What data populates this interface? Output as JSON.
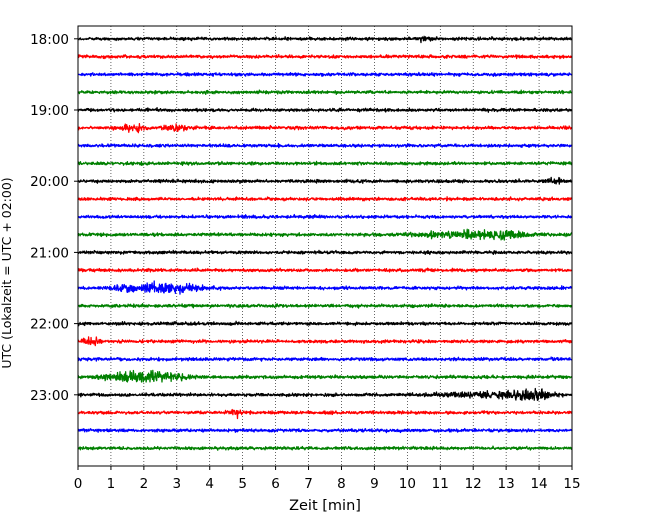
{
  "chart_data": {
    "type": "line",
    "xlabel": "Zeit  [min]",
    "ylabel": "UTC (Lokalzeit = UTC + 02:00)",
    "xlim": [
      0,
      15
    ],
    "xticks": [
      0,
      1,
      2,
      3,
      4,
      5,
      6,
      7,
      8,
      9,
      10,
      11,
      12,
      13,
      14,
      15
    ],
    "xtick_labels": [
      "0",
      "1",
      "2",
      "3",
      "4",
      "5",
      "6",
      "7",
      "8",
      "9",
      "10",
      "11",
      "12",
      "13",
      "14",
      "15"
    ],
    "yticks": [
      {
        "hour": 18.0,
        "label": "18:00"
      },
      {
        "hour": 19.0,
        "label": "19:00"
      },
      {
        "hour": 20.0,
        "label": "20:00"
      },
      {
        "hour": 21.0,
        "label": "21:00"
      },
      {
        "hour": 22.0,
        "label": "22:00"
      },
      {
        "hour": 23.0,
        "label": "23:00"
      }
    ],
    "ylim_hours": [
      17.82,
      24.0
    ],
    "grid": "vertical dotted",
    "trace_interval_min": 15,
    "color_cycle": [
      "#000000",
      "#ff0000",
      "#0000ff",
      "#008000"
    ],
    "traces": [
      {
        "start": "18:00",
        "color": "#000000",
        "events": [
          {
            "t": 10.5,
            "amp": 1.2,
            "w": 0.2
          }
        ]
      },
      {
        "start": "18:15",
        "color": "#ff0000",
        "events": []
      },
      {
        "start": "18:30",
        "color": "#0000ff",
        "events": []
      },
      {
        "start": "18:45",
        "color": "#008000",
        "events": []
      },
      {
        "start": "19:00",
        "color": "#000000",
        "events": []
      },
      {
        "start": "19:15",
        "color": "#ff0000",
        "events": [
          {
            "t": 1.6,
            "amp": 2.2,
            "w": 0.3
          },
          {
            "t": 3.0,
            "amp": 1.8,
            "w": 0.3
          }
        ]
      },
      {
        "start": "19:30",
        "color": "#0000ff",
        "events": []
      },
      {
        "start": "19:45",
        "color": "#008000",
        "events": []
      },
      {
        "start": "20:00",
        "color": "#000000",
        "events": [
          {
            "t": 14.5,
            "amp": 1.3,
            "w": 0.2
          }
        ]
      },
      {
        "start": "20:15",
        "color": "#ff0000",
        "events": []
      },
      {
        "start": "20:30",
        "color": "#0000ff",
        "events": []
      },
      {
        "start": "20:45",
        "color": "#008000",
        "events": [
          {
            "t": 11.8,
            "amp": 2.5,
            "w": 1.0
          },
          {
            "t": 13.0,
            "amp": 2.4,
            "w": 0.3
          }
        ]
      },
      {
        "start": "21:00",
        "color": "#000000",
        "events": []
      },
      {
        "start": "21:15",
        "color": "#ff0000",
        "events": []
      },
      {
        "start": "21:30",
        "color": "#0000ff",
        "events": [
          {
            "t": 1.6,
            "amp": 3.0,
            "w": 0.35
          },
          {
            "t": 2.4,
            "amp": 3.2,
            "w": 0.3
          },
          {
            "t": 3.2,
            "amp": 2.2,
            "w": 0.5
          }
        ]
      },
      {
        "start": "21:45",
        "color": "#008000",
        "events": []
      },
      {
        "start": "22:00",
        "color": "#000000",
        "events": []
      },
      {
        "start": "22:15",
        "color": "#ff0000",
        "events": [
          {
            "t": 0.4,
            "amp": 3.0,
            "w": 0.15
          }
        ]
      },
      {
        "start": "22:30",
        "color": "#0000ff",
        "events": []
      },
      {
        "start": "22:45",
        "color": "#008000",
        "events": [
          {
            "t": 1.5,
            "amp": 3.0,
            "w": 0.5
          },
          {
            "t": 2.5,
            "amp": 3.4,
            "w": 0.45
          }
        ]
      },
      {
        "start": "23:00",
        "color": "#000000",
        "events": [
          {
            "t": 12.5,
            "amp": 2.0,
            "w": 0.9
          },
          {
            "t": 13.7,
            "amp": 3.6,
            "w": 0.4
          }
        ]
      },
      {
        "start": "23:15",
        "color": "#ff0000",
        "events": [
          {
            "t": 4.8,
            "amp": 2.6,
            "w": 0.15
          }
        ]
      },
      {
        "start": "23:30",
        "color": "#0000ff",
        "events": []
      },
      {
        "start": "23:45",
        "color": "#008000",
        "events": []
      }
    ]
  }
}
